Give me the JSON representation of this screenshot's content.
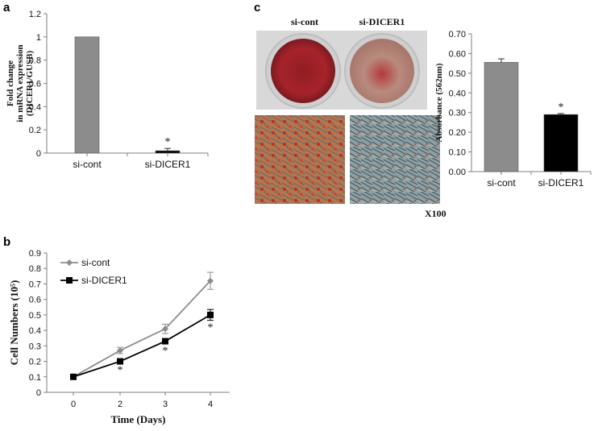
{
  "panels": {
    "a": {
      "letter": "a"
    },
    "b": {
      "letter": "b"
    },
    "c": {
      "letter": "c"
    }
  },
  "photo": {
    "plate_labels": [
      "si-cont",
      "si-DICER1"
    ],
    "magnification": "X100",
    "colors": {
      "stain": "#a8232b",
      "plate_bg": "#d9d9d9"
    }
  },
  "chart_data": [
    {
      "id": "a",
      "type": "bar",
      "categories": [
        "si-cont",
        "si-DICER1"
      ],
      "values": [
        1.0,
        0.02
      ],
      "errors": [
        0.0,
        0.02
      ],
      "significance": [
        "",
        "*"
      ],
      "ylabel_lines": [
        "Fold change",
        "in mRNA expression",
        "(DICER1/GUSB)"
      ],
      "ylim": [
        0,
        1.2
      ],
      "yticks": [
        0,
        0.2,
        0.4,
        0.6,
        0.8,
        1,
        1.2
      ],
      "ytick_labels": [
        "0",
        "0.2",
        "0.4",
        "0.6",
        "0.8",
        "1",
        "1.2"
      ],
      "colors": [
        "#8c8c8c",
        "#000000"
      ]
    },
    {
      "id": "c",
      "type": "bar",
      "categories": [
        "si-cont",
        "si-DICER1"
      ],
      "values": [
        0.555,
        0.29
      ],
      "errors": [
        0.018,
        0.005
      ],
      "significance": [
        "",
        "*"
      ],
      "ylabel": "Absorbance (562nm)",
      "ylim": [
        0,
        0.7
      ],
      "yticks": [
        0,
        0.1,
        0.2,
        0.3,
        0.4,
        0.5,
        0.6,
        0.7
      ],
      "ytick_labels": [
        "0.00",
        "0.10",
        "0.20",
        "0.30",
        "0.40",
        "0.50",
        "0.60",
        "0.70"
      ],
      "colors": [
        "#8c8c8c",
        "#000000"
      ]
    },
    {
      "id": "b",
      "type": "line",
      "x": [
        0,
        2,
        3,
        4
      ],
      "xtick_labels": [
        "0",
        "2",
        "3",
        "4"
      ],
      "series": [
        {
          "name": "si-cont",
          "values": [
            0.1,
            0.27,
            0.41,
            0.72
          ],
          "errors": [
            0.005,
            0.02,
            0.03,
            0.055
          ],
          "color": "#8c8c8c",
          "marker": "diamond"
        },
        {
          "name": "si-DICER1",
          "values": [
            0.1,
            0.2,
            0.33,
            0.5
          ],
          "errors": [
            0.005,
            0.01,
            0.015,
            0.035
          ],
          "color": "#000000",
          "marker": "square"
        }
      ],
      "significance": [
        "",
        "*",
        "*",
        "*"
      ],
      "xlabel": "Time (Days)",
      "ylabel": "Cell Numbers (10⁵)",
      "ylim": [
        0,
        0.9
      ],
      "yticks": [
        0,
        0.1,
        0.2,
        0.3,
        0.4,
        0.5,
        0.6,
        0.7,
        0.8,
        0.9
      ],
      "ytick_labels": [
        "0",
        "0.1",
        "0.2",
        "0.3",
        "0.4",
        "0.5",
        "0.6",
        "0.7",
        "0.8",
        "0.9"
      ],
      "legend_position": "top-left"
    }
  ]
}
